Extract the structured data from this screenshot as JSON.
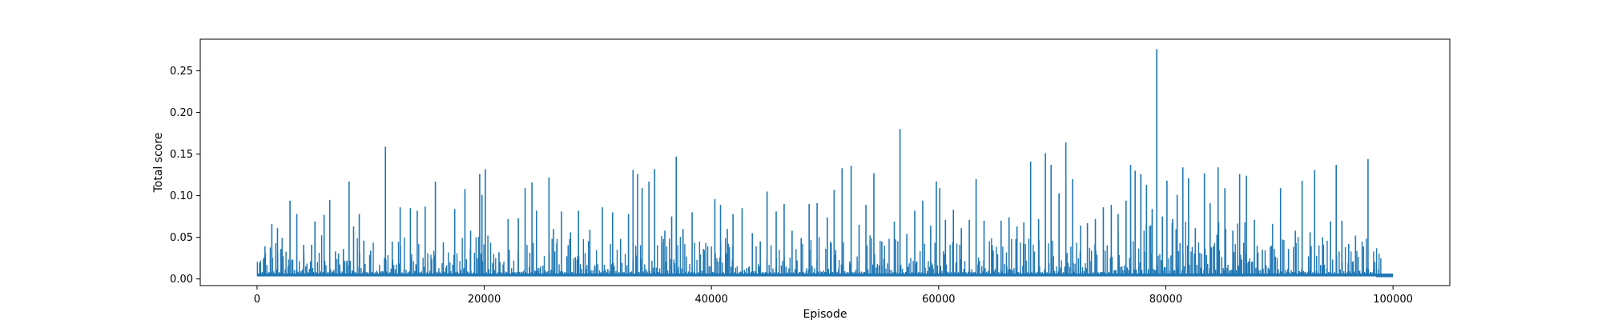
{
  "chart_data": {
    "type": "line",
    "title": "",
    "xlabel": "Episode",
    "ylabel": "Total score",
    "xlim": [
      -5000,
      105000
    ],
    "ylim": [
      -0.008,
      0.288
    ],
    "xticks": [
      0,
      20000,
      40000,
      60000,
      80000,
      100000
    ],
    "xtick_labels": [
      "0",
      "20000",
      "40000",
      "60000",
      "80000",
      "100000"
    ],
    "yticks": [
      0.0,
      0.05,
      0.1,
      0.15,
      0.2,
      0.25
    ],
    "ytick_labels": [
      "0.00",
      "0.05",
      "0.10",
      "0.15",
      "0.20",
      "0.25"
    ],
    "grid": false,
    "legend": "none",
    "series": [
      {
        "color": "#1f77b4",
        "baseline": 0.004,
        "x": [
          0,
          100000
        ],
        "peaks": [
          [
            300,
            0.012
          ],
          [
            700,
            0.039
          ],
          [
            1300,
            0.066
          ],
          [
            1800,
            0.061
          ],
          [
            2100,
            0.036
          ],
          [
            2900,
            0.094
          ],
          [
            3500,
            0.078
          ],
          [
            4100,
            0.041
          ],
          [
            4800,
            0.041
          ],
          [
            5100,
            0.069
          ],
          [
            5900,
            0.077
          ],
          [
            6400,
            0.095
          ],
          [
            6900,
            0.033
          ],
          [
            7600,
            0.036
          ],
          [
            8100,
            0.117
          ],
          [
            8500,
            0.063
          ],
          [
            9000,
            0.078
          ],
          [
            9400,
            0.046
          ],
          [
            10000,
            0.034
          ],
          [
            11300,
            0.159
          ],
          [
            11900,
            0.045
          ],
          [
            12600,
            0.086
          ],
          [
            13500,
            0.085
          ],
          [
            14100,
            0.082
          ],
          [
            14800,
            0.087
          ],
          [
            15700,
            0.117
          ],
          [
            16400,
            0.044
          ],
          [
            17400,
            0.084
          ],
          [
            18300,
            0.108
          ],
          [
            18800,
            0.058
          ],
          [
            19600,
            0.126
          ],
          [
            19800,
            0.101
          ],
          [
            20100,
            0.132
          ],
          [
            21300,
            0.032
          ],
          [
            22100,
            0.072
          ],
          [
            23000,
            0.073
          ],
          [
            23600,
            0.109
          ],
          [
            24200,
            0.116
          ],
          [
            24600,
            0.082
          ],
          [
            25700,
            0.122
          ],
          [
            26100,
            0.06
          ],
          [
            26800,
            0.081
          ],
          [
            27600,
            0.056
          ],
          [
            28300,
            0.082
          ],
          [
            29300,
            0.059
          ],
          [
            30400,
            0.086
          ],
          [
            31300,
            0.08
          ],
          [
            32000,
            0.048
          ],
          [
            32700,
            0.078
          ],
          [
            33100,
            0.131
          ],
          [
            33500,
            0.126
          ],
          [
            33900,
            0.109
          ],
          [
            34500,
            0.117
          ],
          [
            35000,
            0.132
          ],
          [
            35900,
            0.058
          ],
          [
            36500,
            0.075
          ],
          [
            36900,
            0.147
          ],
          [
            37500,
            0.06
          ],
          [
            38300,
            0.08
          ],
          [
            39300,
            0.036
          ],
          [
            40300,
            0.096
          ],
          [
            40800,
            0.089
          ],
          [
            41400,
            0.06
          ],
          [
            41900,
            0.078
          ],
          [
            42700,
            0.085
          ],
          [
            43600,
            0.055
          ],
          [
            44300,
            0.045
          ],
          [
            44900,
            0.105
          ],
          [
            45700,
            0.081
          ],
          [
            46400,
            0.09
          ],
          [
            47100,
            0.058
          ],
          [
            47900,
            0.049
          ],
          [
            48600,
            0.09
          ],
          [
            49300,
            0.091
          ],
          [
            50200,
            0.074
          ],
          [
            50800,
            0.107
          ],
          [
            51500,
            0.133
          ],
          [
            52300,
            0.136
          ],
          [
            53000,
            0.065
          ],
          [
            53600,
            0.089
          ],
          [
            54300,
            0.127
          ],
          [
            55000,
            0.045
          ],
          [
            56100,
            0.069
          ],
          [
            56600,
            0.18
          ],
          [
            57200,
            0.054
          ],
          [
            57900,
            0.082
          ],
          [
            58600,
            0.094
          ],
          [
            59300,
            0.064
          ],
          [
            59800,
            0.117
          ],
          [
            60100,
            0.109
          ],
          [
            60600,
            0.071
          ],
          [
            61300,
            0.083
          ],
          [
            62000,
            0.061
          ],
          [
            62700,
            0.071
          ],
          [
            63300,
            0.12
          ],
          [
            64000,
            0.07
          ],
          [
            64800,
            0.034
          ],
          [
            65500,
            0.07
          ],
          [
            66200,
            0.074
          ],
          [
            66900,
            0.063
          ],
          [
            67500,
            0.068
          ],
          [
            68100,
            0.141
          ],
          [
            68800,
            0.072
          ],
          [
            69400,
            0.151
          ],
          [
            69900,
            0.137
          ],
          [
            70600,
            0.103
          ],
          [
            71200,
            0.164
          ],
          [
            71800,
            0.12
          ],
          [
            72500,
            0.064
          ],
          [
            73100,
            0.067
          ],
          [
            73800,
            0.072
          ],
          [
            74500,
            0.086
          ],
          [
            75200,
            0.089
          ],
          [
            75800,
            0.078
          ],
          [
            76500,
            0.094
          ],
          [
            76900,
            0.137
          ],
          [
            77300,
            0.13
          ],
          [
            77800,
            0.126
          ],
          [
            78300,
            0.113
          ],
          [
            78800,
            0.084
          ],
          [
            79200,
            0.276
          ],
          [
            79700,
            0.075
          ],
          [
            80100,
            0.118
          ],
          [
            80600,
            0.072
          ],
          [
            81000,
            0.101
          ],
          [
            81500,
            0.134
          ],
          [
            82000,
            0.121
          ],
          [
            82600,
            0.061
          ],
          [
            83400,
            0.127
          ],
          [
            83900,
            0.091
          ],
          [
            84600,
            0.134
          ],
          [
            85200,
            0.109
          ],
          [
            85900,
            0.058
          ],
          [
            86500,
            0.126
          ],
          [
            87100,
            0.124
          ],
          [
            87800,
            0.071
          ],
          [
            88500,
            0.035
          ],
          [
            89200,
            0.039
          ],
          [
            90100,
            0.109
          ],
          [
            90800,
            0.036
          ],
          [
            91400,
            0.058
          ],
          [
            92000,
            0.118
          ],
          [
            92700,
            0.056
          ],
          [
            93100,
            0.131
          ],
          [
            93800,
            0.05
          ],
          [
            94500,
            0.069
          ],
          [
            95000,
            0.137
          ],
          [
            95500,
            0.07
          ],
          [
            96100,
            0.042
          ],
          [
            96700,
            0.052
          ],
          [
            97400,
            0.039
          ],
          [
            97800,
            0.144
          ],
          [
            98300,
            0.012
          ],
          [
            98900,
            0.005
          ],
          [
            99500,
            0.003
          ]
        ]
      }
    ]
  }
}
